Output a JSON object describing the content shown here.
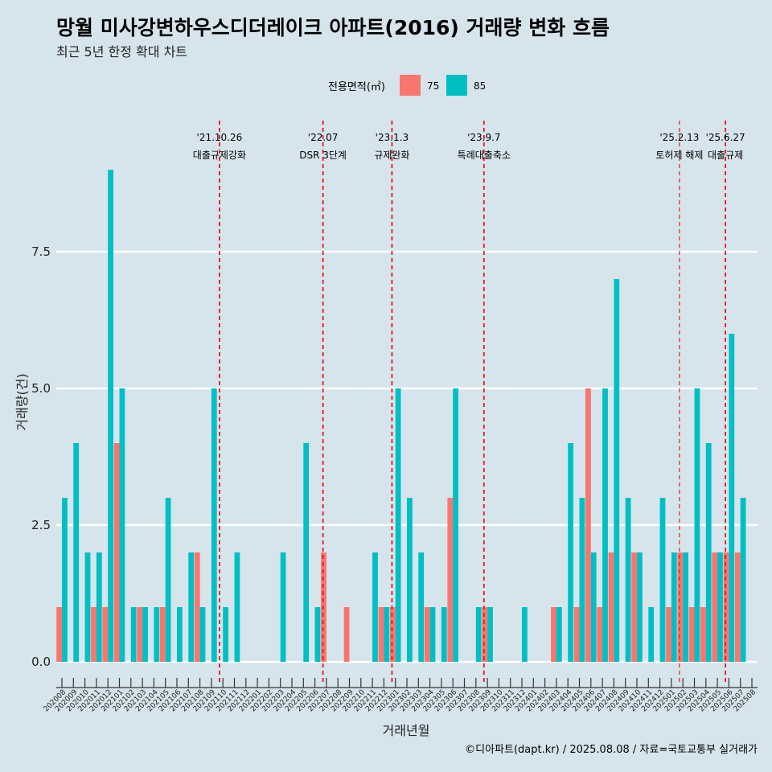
{
  "chart_data": {
    "type": "bar",
    "title": "망월 미사강변하우스디더레이크 아파트(2016) 거래량 변화 흐름",
    "subtitle": "최근 5년 한정 확대 차트",
    "xlabel": "거래년월",
    "ylabel": "거래량(건)",
    "ylim": [
      -0.5,
      10.0
    ],
    "yticks": [
      0.0,
      2.5,
      5.0,
      7.5
    ],
    "ytick_labels": [
      "0.0",
      "2.5",
      "5.0",
      "7.5"
    ],
    "legend": {
      "title": "전용면적(㎡)",
      "position": "top",
      "entries": [
        {
          "name": "75",
          "color": "#f8766d"
        },
        {
          "name": "85",
          "color": "#00bfc4"
        }
      ]
    },
    "categories": [
      "202008",
      "202009",
      "202010",
      "202011",
      "202012",
      "202101",
      "202102",
      "202103",
      "202104",
      "202105",
      "202106",
      "202107",
      "202108",
      "202109",
      "202110",
      "202111",
      "202112",
      "202201",
      "202202",
      "202203",
      "202204",
      "202205",
      "202206",
      "202207",
      "202208",
      "202209",
      "202210",
      "202211",
      "202212",
      "202301",
      "202302",
      "202303",
      "202304",
      "202305",
      "202306",
      "202307",
      "202308",
      "202309",
      "202310",
      "202311",
      "202312",
      "202401",
      "202402",
      "202403",
      "202404",
      "202405",
      "202406",
      "202407",
      "202408",
      "202409",
      "202410",
      "202411",
      "202412",
      "202501",
      "202502",
      "202503",
      "202504",
      "202505",
      "202506",
      "202507",
      "202508"
    ],
    "series": [
      {
        "name": "75",
        "color": "#f8766d",
        "values": [
          1,
          0,
          0,
          1,
          1,
          4,
          0,
          1,
          0,
          1,
          0,
          0,
          2,
          0,
          0,
          0,
          0,
          0,
          0,
          0,
          0,
          0,
          0,
          2,
          0,
          1,
          0,
          0,
          1,
          1,
          0,
          0,
          1,
          0,
          3,
          0,
          0,
          1,
          0,
          0,
          0,
          0,
          0,
          1,
          0,
          1,
          5,
          1,
          2,
          0,
          2,
          0,
          0,
          1,
          2,
          1,
          1,
          2,
          2,
          2,
          0
        ]
      },
      {
        "name": "85",
        "color": "#00bfc4",
        "values": [
          3,
          4,
          2,
          2,
          9,
          5,
          1,
          1,
          1,
          3,
          1,
          2,
          1,
          5,
          1,
          2,
          0,
          0,
          0,
          2,
          0,
          4,
          1,
          0,
          0,
          0,
          0,
          2,
          1,
          5,
          3,
          2,
          1,
          1,
          5,
          0,
          1,
          1,
          0,
          0,
          1,
          0,
          0,
          1,
          4,
          3,
          2,
          5,
          7,
          3,
          2,
          1,
          3,
          2,
          2,
          5,
          4,
          2,
          6,
          3,
          0
        ]
      }
    ],
    "events": [
      {
        "date": "'21.10.26",
        "label": "대출규제강화",
        "after_index": 13.7
      },
      {
        "date": "'22.07",
        "label": "DSR 3단계",
        "after_index": 22.7
      },
      {
        "date": "'23.1.3",
        "label": "규제완화",
        "after_index": 28.7
      },
      {
        "date": "'23.9.7",
        "label": "특례대출축소",
        "after_index": 36.7
      },
      {
        "date": "'25.2.13",
        "label": "토허제 해제",
        "after_index": 53.7
      },
      {
        "date": "'25.6.27",
        "label": "대출규제",
        "after_index": 57.7
      }
    ],
    "caption": "©디아파트(dapt.kr) / 2025.08.08 / 자료=국토교통부 실거래가"
  }
}
